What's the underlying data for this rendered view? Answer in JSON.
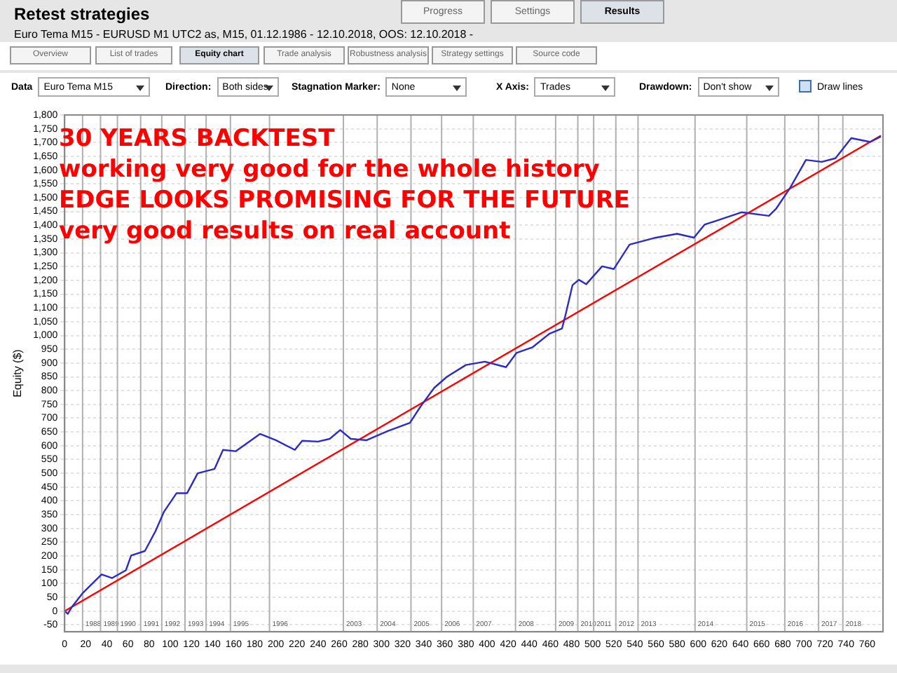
{
  "chart_data": {
    "type": "line",
    "title": "Retest strategies",
    "subtitle": "Euro Tema M15 - EURUSD  M1  UTC2  as, M15, 01.12.1986 - 12.10.2018, OOS: 12.10.2018 -",
    "ylabel": "Equity ($)",
    "annotations": [
      "30 YEARS BACKTEST",
      "working very good for the whole history",
      "EDGE LOOKS PROMISING FOR THE FUTURE",
      "very good results on real account",
      "Progress",
      "Settings",
      "Results",
      "Overview",
      "List of trades",
      "Equity chart",
      "Trade analysis",
      "Robustness analysis",
      "Strategy settings",
      "Source code",
      "Data",
      "Euro Tema M15",
      "Direction:",
      "Both sides",
      "Stagnation Marker:",
      "None",
      "X Axis:",
      "Trades",
      "Drawdown:",
      "Don't show",
      "Draw lines",
      "1988",
      "1989",
      "1990",
      "1991",
      "1992",
      "1993",
      "1994",
      "1995",
      "1996",
      "2003",
      "2004",
      "2005",
      "2006",
      "2007",
      "2008",
      "2009",
      "2010",
      "2011",
      "2012",
      "2013",
      "2014",
      "2015",
      "2016",
      "2017",
      "2018"
    ],
    "series": [
      {
        "color": "#2b2bc8",
        "x": [
          0,
          3,
          7,
          17,
          35,
          45,
          58,
          63,
          76,
          86,
          94,
          106,
          116,
          126,
          142,
          150,
          162,
          185,
          200,
          218,
          225,
          240,
          251,
          261,
          271,
          286,
          306,
          327,
          337,
          350,
          362,
          380,
          398,
          418,
          428,
          443,
          459,
          471,
          474,
          481,
          487,
          494,
          509,
          520,
          535,
          560,
          580,
          596,
          606,
          641,
          667,
          674,
          687,
          702,
          717,
          730,
          745,
          763,
          773
        ],
        "values": [
          0,
          -10,
          16,
          65,
          133,
          120,
          148,
          202,
          218,
          290,
          360,
          428,
          428,
          500,
          516,
          585,
          580,
          643,
          620,
          585,
          618,
          615,
          625,
          657,
          625,
          620,
          653,
          683,
          742,
          810,
          850,
          893,
          905,
          885,
          937,
          957,
          1006,
          1025,
          1069,
          1183,
          1202,
          1186,
          1251,
          1241,
          1330,
          1355,
          1369,
          1355,
          1402,
          1447,
          1434,
          1461,
          1535,
          1637,
          1630,
          1643,
          1716,
          1702,
          1722
        ]
      },
      {
        "color": "#ff0000",
        "x": [
          0,
          773
        ],
        "values": [
          0,
          1725
        ]
      }
    ],
    "xlim": [
      0,
      775
    ],
    "xticks": [
      0,
      20,
      40,
      60,
      80,
      100,
      120,
      140,
      160,
      180,
      200,
      220,
      240,
      260,
      280,
      300,
      320,
      340,
      360,
      380,
      400,
      420,
      440,
      460,
      480,
      500,
      520,
      540,
      560,
      580,
      600,
      620,
      640,
      660,
      680,
      700,
      720,
      740,
      760
    ],
    "ylim": [
      -75,
      1800
    ],
    "yticks": [
      -50,
      0,
      50,
      100,
      150,
      200,
      250,
      300,
      350,
      400,
      450,
      500,
      550,
      600,
      650,
      700,
      750,
      800,
      850,
      900,
      950,
      {
        "value": 1000,
        "label": "1,000"
      },
      {
        "value": 1050,
        "label": "1,050"
      },
      {
        "value": 1100,
        "label": "1,100"
      },
      {
        "value": 1150,
        "label": "1,150"
      },
      {
        "value": 1200,
        "label": "1,200"
      },
      {
        "value": 1250,
        "label": "1,250"
      },
      {
        "value": 1300,
        "label": "1,300"
      },
      {
        "value": 1350,
        "label": "1,350"
      },
      {
        "value": 1400,
        "label": "1,400"
      },
      {
        "value": 1450,
        "label": "1,450"
      },
      {
        "value": 1500,
        "label": "1,500"
      },
      {
        "value": 1550,
        "label": "1,550"
      },
      {
        "value": 1600,
        "label": "1,600"
      },
      {
        "value": 1650,
        "label": "1,650"
      },
      {
        "value": 1700,
        "label": "1,700"
      },
      {
        "value": 1750,
        "label": "1,750"
      },
      {
        "value": 1800,
        "label": "1,800"
      }
    ],
    "ref_lines": [
      {
        "axis": "x",
        "value": 17
      },
      {
        "axis": "x",
        "value": 34
      },
      {
        "axis": "x",
        "value": 50
      },
      {
        "axis": "x",
        "value": 72
      },
      {
        "axis": "x",
        "value": 92
      },
      {
        "axis": "x",
        "value": 114
      },
      {
        "axis": "x",
        "value": 134
      },
      {
        "axis": "x",
        "value": 157
      },
      {
        "axis": "x",
        "value": 194
      },
      {
        "axis": "x",
        "value": 264
      },
      {
        "axis": "x",
        "value": 296
      },
      {
        "axis": "x",
        "value": 328
      },
      {
        "axis": "x",
        "value": 357
      },
      {
        "axis": "x",
        "value": 387
      },
      {
        "axis": "x",
        "value": 427
      },
      {
        "axis": "x",
        "value": 465
      },
      {
        "axis": "x",
        "value": 486
      },
      {
        "axis": "x",
        "value": 501
      },
      {
        "axis": "x",
        "value": 522
      },
      {
        "axis": "x",
        "value": 543
      },
      {
        "axis": "x",
        "value": 597
      },
      {
        "axis": "x",
        "value": 646
      },
      {
        "axis": "x",
        "value": 682
      },
      {
        "axis": "x",
        "value": 714
      },
      {
        "axis": "x",
        "value": 737
      }
    ],
    "grid": "y",
    "legend": false,
    "marker": "none",
    "line_style": "solid"
  }
}
